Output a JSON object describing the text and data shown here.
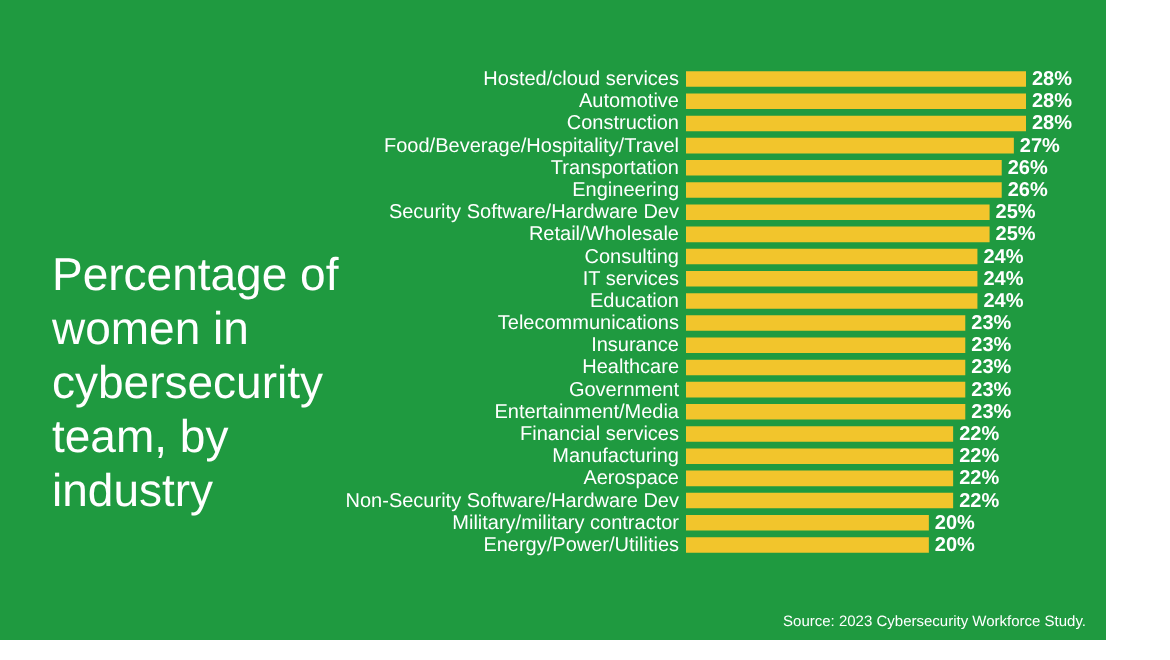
{
  "chart_data": {
    "type": "bar",
    "orientation": "horizontal",
    "title": "Percentage of women in cybersecurity team, by industry",
    "categories": [
      "Hosted/cloud services",
      "Automotive",
      "Construction",
      "Food/Beverage/Hospitality/Travel",
      "Transportation",
      "Engineering",
      "Security Software/Hardware Dev",
      "Retail/Wholesale",
      "Consulting",
      "IT services",
      "Education",
      "Telecommunications",
      "Insurance",
      "Healthcare",
      "Government",
      "Entertainment/Media",
      "Financial services",
      "Manufacturing",
      "Aerospace",
      "Non-Security Software/Hardware Dev",
      "Military/military contractor",
      "Energy/Power/Utilities"
    ],
    "values": [
      28,
      28,
      28,
      27,
      26,
      26,
      25,
      25,
      24,
      24,
      24,
      23,
      23,
      23,
      23,
      23,
      22,
      22,
      22,
      22,
      20,
      20
    ],
    "value_labels": [
      "28%",
      "28%",
      "28%",
      "27%",
      "26%",
      "26%",
      "25%",
      "25%",
      "24%",
      "24%",
      "24%",
      "23%",
      "23%",
      "23%",
      "23%",
      "23%",
      "22%",
      "22%",
      "22%",
      "22%",
      "20%",
      "20%"
    ],
    "color": "#f2c52c",
    "annotations": [
      "Source: 2023 Cybersecurity Workforce Study."
    ],
    "grid": false
  }
}
